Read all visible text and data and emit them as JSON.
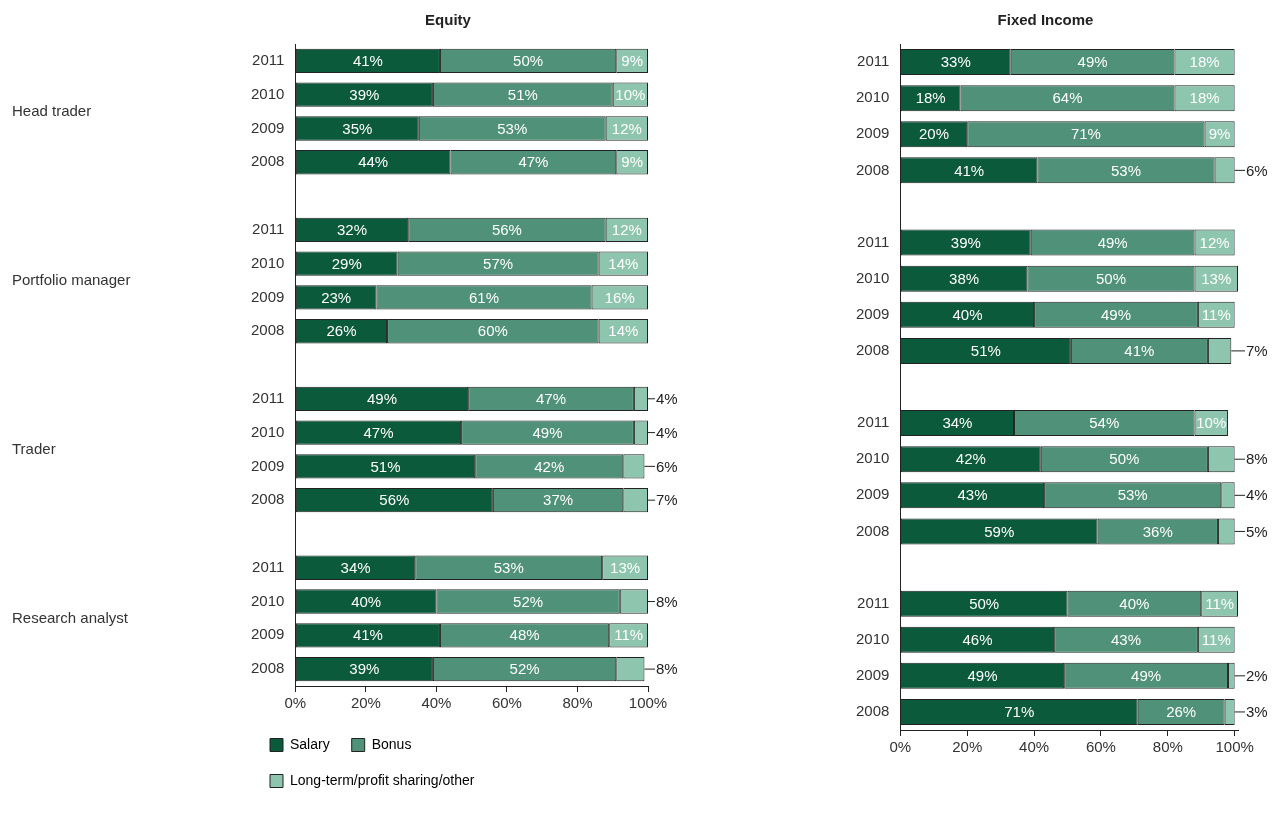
{
  "chart_data": [
    {
      "type": "bar",
      "title": "Equity",
      "orientation": "horizontal",
      "stacked": true,
      "legend": "bottom left",
      "grid": false,
      "categories": [
        "2011",
        "2010",
        "2009",
        "2008",
        null,
        "2011",
        "2010",
        "2009",
        "2008",
        null,
        "2011",
        "2010",
        "2009",
        "2008",
        null,
        "2011",
        "2010",
        "2009",
        "2008"
      ],
      "annotations": [
        "Head trader",
        "Portfolio manager",
        "Trader",
        "Research analyst"
      ],
      "xlim": [
        0,
        100
      ],
      "xticks": [
        {
          "value": 0,
          "label": "0%"
        },
        {
          "value": 20,
          "label": "20%"
        },
        {
          "value": 40,
          "label": "40%"
        },
        {
          "value": 60,
          "label": "60%"
        },
        {
          "value": 80,
          "label": "80%"
        },
        {
          "value": 100,
          "label": "100%"
        }
      ],
      "series": [
        {
          "name": "Salary",
          "color": "#0b5a3c",
          "values": [
            41,
            39,
            35,
            44,
            null,
            32,
            29,
            23,
            26,
            null,
            49,
            47,
            51,
            56,
            null,
            34,
            40,
            41,
            39
          ],
          "value_labels": [
            "41%",
            "39%",
            "35%",
            "44%",
            null,
            "32%",
            "29%",
            "23%",
            "26%",
            null,
            "49%",
            "47%",
            "51%",
            "56%",
            null,
            "34%",
            "40%",
            "41%",
            "39%"
          ]
        },
        {
          "name": "Bonus",
          "color": "#4f9179",
          "values": [
            50,
            51,
            53,
            47,
            null,
            56,
            57,
            61,
            60,
            null,
            47,
            49,
            42,
            37,
            null,
            53,
            52,
            48,
            52
          ],
          "value_labels": [
            "50%",
            "51%",
            "53%",
            "47%",
            null,
            "56%",
            "57%",
            "61%",
            "60%",
            null,
            "47%",
            "49%",
            "42%",
            "37%",
            null,
            "53%",
            "52%",
            "48%",
            "52%"
          ]
        },
        {
          "name": "Long-term/profit sharing/other",
          "color": "#8ec5ae",
          "values": [
            9,
            10,
            12,
            9,
            null,
            12,
            14,
            16,
            14,
            null,
            4,
            4,
            6,
            7,
            null,
            13,
            8,
            11,
            8
          ],
          "value_labels": [
            "9%",
            "10%",
            "12%",
            "9%",
            null,
            "12%",
            "14%",
            "16%",
            "14%",
            null,
            "4%",
            "4%",
            "6%",
            "7%",
            null,
            "13%",
            "8%",
            "11%",
            "8%"
          ]
        }
      ]
    },
    {
      "type": "bar",
      "title": "Fixed Income",
      "orientation": "horizontal",
      "stacked": true,
      "grid": false,
      "categories": [
        "2011",
        "2010",
        "2009",
        "2008",
        null,
        "2011",
        "2010",
        "2009",
        "2008",
        null,
        "2011",
        "2010",
        "2009",
        "2008",
        null,
        "2011",
        "2010",
        "2009",
        "2008"
      ],
      "xlim": [
        0,
        101
      ],
      "xticks": [
        {
          "value": 0,
          "label": "0%"
        },
        {
          "value": 20,
          "label": "20%"
        },
        {
          "value": 40,
          "label": "40%"
        },
        {
          "value": 60,
          "label": "60%"
        },
        {
          "value": 80,
          "label": "80%"
        },
        {
          "value": 100,
          "label": "100%"
        }
      ],
      "series": [
        {
          "color": "#0b5a3c",
          "values": [
            33,
            18,
            20,
            41,
            null,
            39,
            38,
            40,
            51,
            null,
            34,
            42,
            43,
            59,
            null,
            50,
            46,
            49,
            71
          ],
          "value_labels": [
            "33%",
            "18%",
            "20%",
            "41%",
            null,
            "39%",
            "38%",
            "40%",
            "51%",
            null,
            "34%",
            "42%",
            "43%",
            "59%",
            null,
            "50%",
            "46%",
            "49%",
            "71%"
          ]
        },
        {
          "color": "#4f9179",
          "values": [
            49,
            64,
            71,
            53,
            null,
            49,
            50,
            49,
            41,
            null,
            54,
            50,
            53,
            36,
            null,
            40,
            43,
            49,
            26
          ],
          "value_labels": [
            "49%",
            "64%",
            "71%",
            "53%",
            null,
            "49%",
            "50%",
            "49%",
            "41%",
            null,
            "54%",
            "50%",
            "53%",
            "36%",
            null,
            "40%",
            "43%",
            "49%",
            "26%"
          ]
        },
        {
          "color": "#8ec5ae",
          "values": [
            18,
            18,
            9,
            6,
            null,
            12,
            13,
            11,
            7,
            null,
            10,
            8,
            4,
            5,
            null,
            11,
            11,
            2,
            3
          ],
          "value_labels": [
            "18%",
            "18%",
            "9%",
            "6%",
            null,
            "12%",
            "13%",
            "11%",
            "7%",
            null,
            "10%",
            "8%",
            "4%",
            "5%",
            null,
            "11%",
            "11%",
            "2%",
            "3%"
          ]
        }
      ]
    }
  ]
}
